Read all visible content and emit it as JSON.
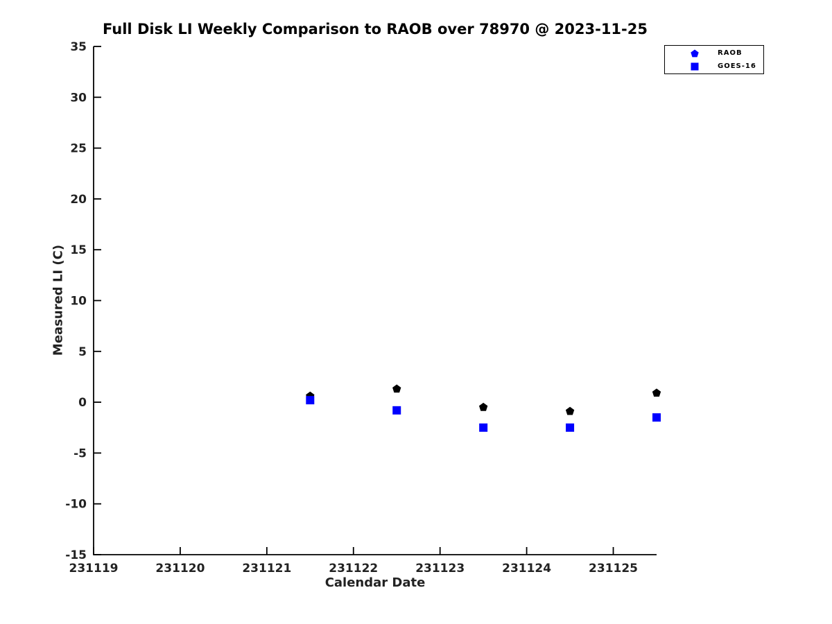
{
  "figure": {
    "background_color": "#ffffff",
    "axis_color": "#000000",
    "accent_blue": "#0000ff"
  },
  "chart_data": {
    "type": "scatter",
    "title": "Full Disk LI Weekly Comparison to RAOB over 78970 @ 2023-11-25",
    "xlabel": "Calendar Date",
    "ylabel": "Measured LI (C)",
    "xlim": [
      231119,
      231125.5
    ],
    "ylim": [
      -15,
      35
    ],
    "x_ticks": [
      231119,
      231120,
      231121,
      231122,
      231123,
      231124,
      231125
    ],
    "y_ticks": [
      -15,
      -10,
      -5,
      0,
      5,
      10,
      15,
      20,
      25,
      30,
      35
    ],
    "grid": false,
    "legend_position": "top-right",
    "series": [
      {
        "name": "RAOB",
        "marker": "pentagon",
        "data_color": "#000000",
        "legend_color": "#0000ff",
        "x": [
          231121.5,
          231122.5,
          231123.5,
          231124.5,
          231125.5
        ],
        "y": [
          0.6,
          1.3,
          -0.5,
          -0.9,
          0.9
        ]
      },
      {
        "name": "GOES-16",
        "marker": "square",
        "data_color": "#0000ff",
        "legend_color": "#0000ff",
        "x": [
          231121.5,
          231122.5,
          231123.5,
          231124.5,
          231125.5
        ],
        "y": [
          0.2,
          -0.8,
          -2.5,
          -2.5,
          -1.5
        ]
      }
    ]
  }
}
